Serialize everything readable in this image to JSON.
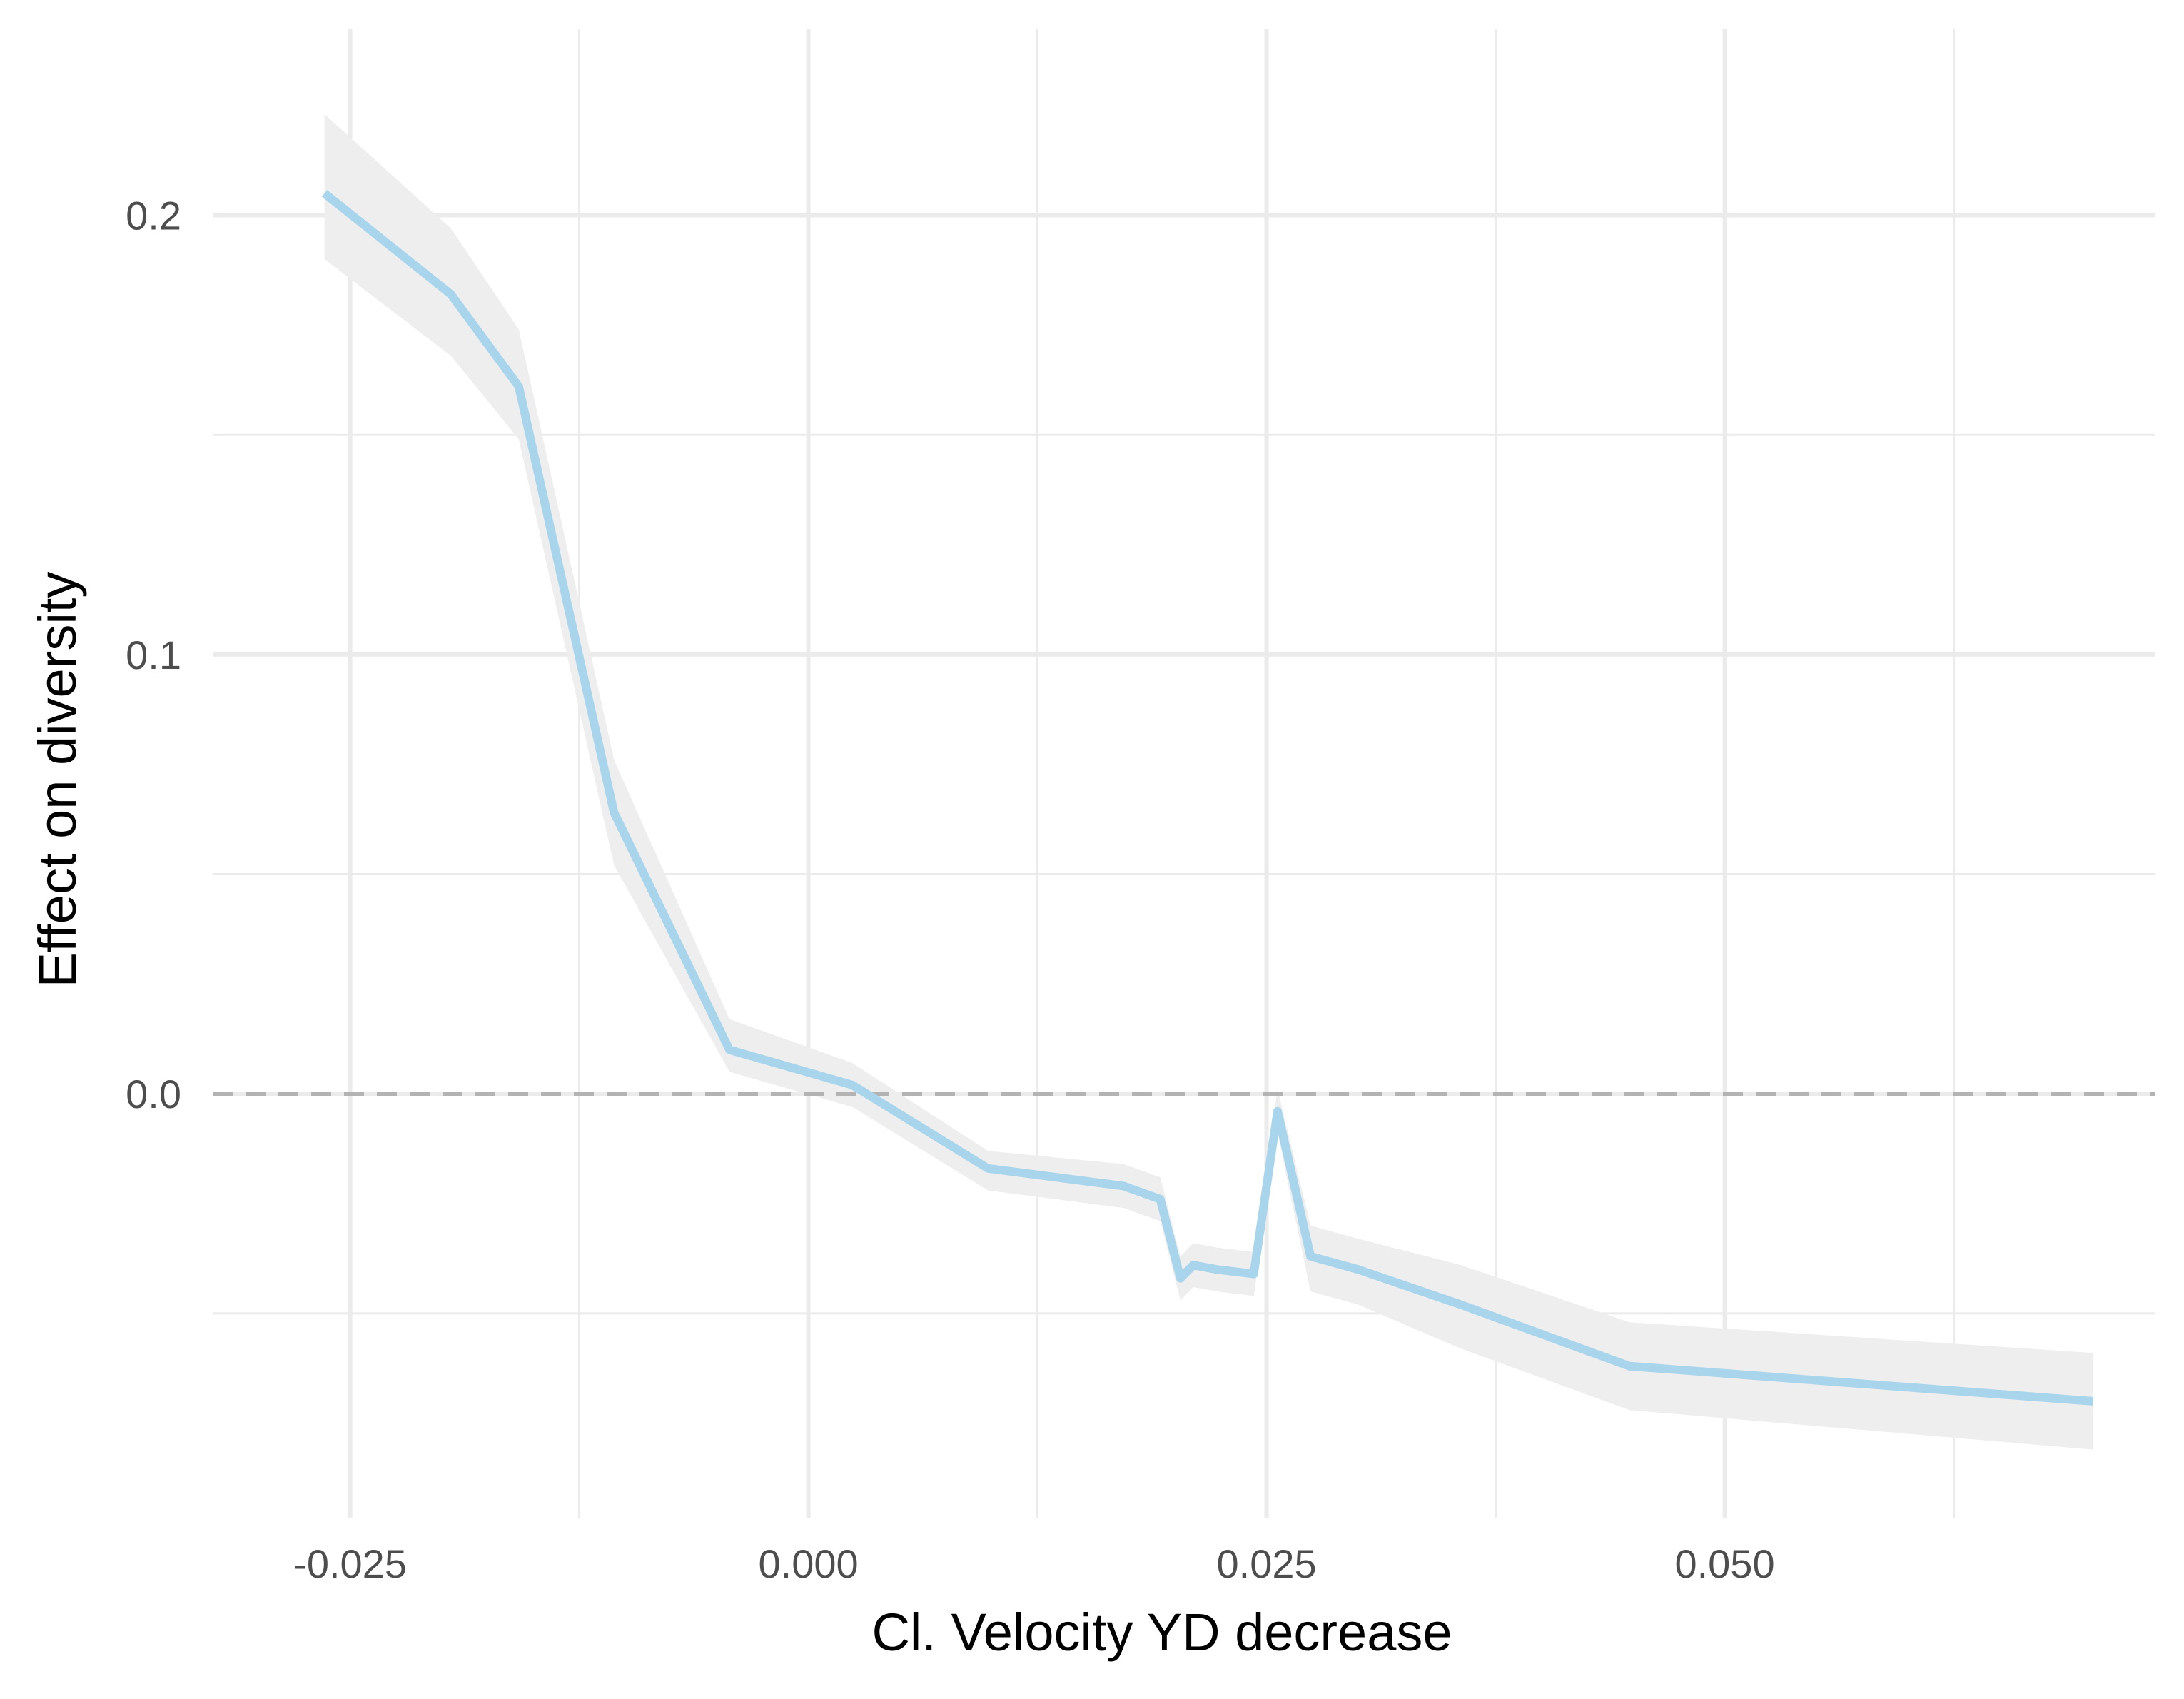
{
  "chart_data": {
    "type": "line",
    "title": "",
    "xlabel": "Cl. Velocity YD decrease",
    "ylabel": "Effect on diversity",
    "xlim": [
      -0.0325,
      0.0735
    ],
    "ylim": [
      -0.0965,
      0.2425
    ],
    "x_ticks": [
      {
        "value": -0.025,
        "label": "-0.025"
      },
      {
        "value": 0.0,
        "label": "0.000"
      },
      {
        "value": 0.025,
        "label": "0.025"
      },
      {
        "value": 0.05,
        "label": "0.050"
      }
    ],
    "y_ticks": [
      {
        "value": 0.0,
        "label": "0.0"
      },
      {
        "value": 0.1,
        "label": "0.1"
      },
      {
        "value": 0.2,
        "label": "0.2"
      }
    ],
    "x_minor_gridlines": [
      -0.0125,
      0.0125,
      0.0375,
      0.0625
    ],
    "y_minor_gridlines": [
      -0.05,
      0.05,
      0.15
    ],
    "grid": true,
    "reference_line": {
      "y": 0,
      "style": "dashed",
      "color": "#b3b3b3"
    },
    "series": [
      {
        "color": "#a8d5ec",
        "ribbon_color": "#eeeeee",
        "points": [
          {
            "x": -0.0264,
            "y": 0.205,
            "lo": 0.19,
            "hi": 0.223
          },
          {
            "x": -0.0195,
            "y": 0.182,
            "lo": 0.168,
            "hi": 0.197
          },
          {
            "x": -0.0158,
            "y": 0.161,
            "lo": 0.149,
            "hi": 0.174
          },
          {
            "x": -0.0106,
            "y": 0.064,
            "lo": 0.052,
            "hi": 0.076
          },
          {
            "x": -0.0043,
            "y": 0.01,
            "lo": 0.005,
            "hi": 0.017
          },
          {
            "x": 0.0024,
            "y": 0.002,
            "lo": -0.003,
            "hi": 0.007
          },
          {
            "x": 0.0098,
            "y": -0.017,
            "lo": -0.022,
            "hi": -0.013
          },
          {
            "x": 0.0172,
            "y": -0.021,
            "lo": -0.026,
            "hi": -0.016
          },
          {
            "x": 0.0192,
            "y": -0.024,
            "lo": -0.029,
            "hi": -0.019
          },
          {
            "x": 0.0203,
            "y": -0.042,
            "lo": -0.047,
            "hi": -0.037
          },
          {
            "x": 0.021,
            "y": -0.039,
            "lo": -0.044,
            "hi": -0.034
          },
          {
            "x": 0.0223,
            "y": -0.04,
            "lo": -0.045,
            "hi": -0.035
          },
          {
            "x": 0.0243,
            "y": -0.041,
            "lo": -0.046,
            "hi": -0.036
          },
          {
            "x": 0.0256,
            "y": -0.004,
            "lo": -0.009,
            "hi": 0.001
          },
          {
            "x": 0.0274,
            "y": -0.037,
            "lo": -0.045,
            "hi": -0.03
          },
          {
            "x": 0.03,
            "y": -0.04,
            "lo": -0.048,
            "hi": -0.033
          },
          {
            "x": 0.0356,
            "y": -0.048,
            "lo": -0.058,
            "hi": -0.039
          },
          {
            "x": 0.0448,
            "y": -0.062,
            "lo": -0.072,
            "hi": -0.052
          },
          {
            "x": 0.0701,
            "y": -0.07,
            "lo": -0.081,
            "hi": -0.059
          }
        ]
      }
    ]
  }
}
